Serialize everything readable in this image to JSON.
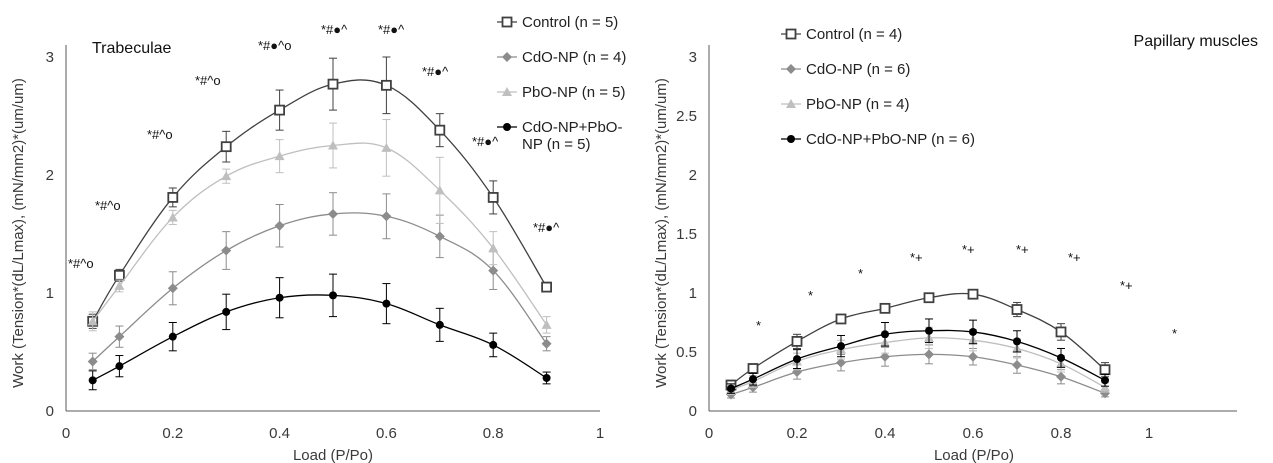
{
  "chart_data": [
    {
      "type": "line",
      "title": "Trabeculae",
      "xlabel": "Load (P/Po)",
      "ylabel": "Work (Tension*(dL/Lmax), (mN/mm2)*(um/um)",
      "xlim": [
        0,
        1
      ],
      "ylim": [
        0,
        3
      ],
      "xticks": [
        0,
        0.2,
        0.4,
        0.6,
        0.8,
        1
      ],
      "xtick_labels": [
        "0",
        "0.2",
        "0.4",
        "0.6",
        "0.8",
        "1"
      ],
      "yticks": [
        0,
        1,
        2,
        3
      ],
      "ytick_labels": [
        "0",
        "1",
        "2",
        "3"
      ],
      "grid": false,
      "legend_position": "top-right",
      "x": [
        0.05,
        0.1,
        0.2,
        0.3,
        0.4,
        0.5,
        0.6,
        0.7,
        0.8,
        0.9
      ],
      "series": [
        {
          "name": "Control (n = 5)",
          "color": "#404040",
          "marker": "open-square",
          "values": [
            0.76,
            1.15,
            1.81,
            2.24,
            2.55,
            2.77,
            2.76,
            2.38,
            1.81,
            1.05
          ],
          "errors": [
            0.06,
            0.05,
            0.08,
            0.13,
            0.17,
            0.22,
            0.24,
            0.14,
            0.14,
            0.04
          ]
        },
        {
          "name": "CdO-NP (n = 4)",
          "color": "#8c8c8c",
          "marker": "diamond",
          "values": [
            0.42,
            0.63,
            1.04,
            1.36,
            1.57,
            1.67,
            1.65,
            1.48,
            1.19,
            0.57
          ],
          "errors": [
            0.07,
            0.09,
            0.14,
            0.16,
            0.18,
            0.18,
            0.19,
            0.18,
            0.16,
            0.06
          ]
        },
        {
          "name": "PbO-NP (n = 5)",
          "color": "#bfbfbf",
          "marker": "triangle",
          "values": [
            0.76,
            1.06,
            1.64,
            1.99,
            2.16,
            2.25,
            2.23,
            1.87,
            1.38,
            0.73
          ],
          "errors": [
            0.08,
            0.05,
            0.06,
            0.06,
            0.14,
            0.19,
            0.24,
            0.28,
            0.14,
            0.07
          ]
        },
        {
          "name": "CdO-NP+PbO-NP (n = 5)",
          "legend_lines": [
            "CdO-NP+PbO-",
            "NP (n = 5)"
          ],
          "color": "#000000",
          "marker": "circle",
          "values": [
            0.26,
            0.38,
            0.63,
            0.84,
            0.96,
            0.98,
            0.91,
            0.73,
            0.56,
            0.28
          ],
          "errors": [
            0.08,
            0.09,
            0.12,
            0.15,
            0.17,
            0.18,
            0.17,
            0.14,
            0.1,
            0.05
          ]
        }
      ],
      "annotations": [
        "*#^o",
        "*#^o",
        "*#^o",
        "*#^o",
        "*#●^o",
        "*#●^",
        "*#●^",
        "*#●^",
        "*#●^",
        "*#●^",
        "*+#●^"
      ]
    },
    {
      "type": "line",
      "title": "Papillary muscles",
      "xlabel": "Load (P/Po)",
      "ylabel": "Work (Tension*(dL/Lmax), (mN/mm2)*(um/um)",
      "xlim": [
        0,
        1.2
      ],
      "ylim": [
        0,
        3
      ],
      "xticks": [
        0,
        0.2,
        0.4,
        0.6,
        0.8,
        1
      ],
      "xtick_labels": [
        "0",
        "0.2",
        "0.4",
        "0.6",
        "0.8",
        "1"
      ],
      "yticks": [
        0,
        0.5,
        1,
        1.5,
        2,
        2.5,
        3
      ],
      "ytick_labels": [
        "0",
        "0.5",
        "1",
        "1.5",
        "2",
        "2.5",
        "3"
      ],
      "grid": false,
      "legend_position": "top-left",
      "x": [
        0.05,
        0.1,
        0.2,
        0.3,
        0.4,
        0.5,
        0.6,
        0.7,
        0.8,
        0.9
      ],
      "series": [
        {
          "name": "Control (n = 4)",
          "color": "#404040",
          "marker": "open-square",
          "values": [
            0.22,
            0.36,
            0.59,
            0.78,
            0.87,
            0.96,
            0.99,
            0.86,
            0.67,
            0.35
          ],
          "errors": [
            0.04,
            0.04,
            0.06,
            0.03,
            0.03,
            0.03,
            0.02,
            0.06,
            0.07,
            0.06
          ]
        },
        {
          "name": "CdO-NP (n = 6)",
          "color": "#8c8c8c",
          "marker": "diamond",
          "values": [
            0.14,
            0.2,
            0.33,
            0.41,
            0.46,
            0.48,
            0.46,
            0.39,
            0.29,
            0.15
          ],
          "errors": [
            0.03,
            0.04,
            0.06,
            0.07,
            0.08,
            0.08,
            0.07,
            0.07,
            0.06,
            0.03
          ]
        },
        {
          "name": "PbO-NP (n = 4)",
          "color": "#bfbfbf",
          "marker": "triangle",
          "values": [
            0.18,
            0.25,
            0.42,
            0.52,
            0.58,
            0.62,
            0.6,
            0.53,
            0.4,
            0.2
          ],
          "errors": [
            0.04,
            0.05,
            0.07,
            0.08,
            0.09,
            0.09,
            0.09,
            0.08,
            0.07,
            0.04
          ]
        },
        {
          "name": "CdO-NP+PbO-NP (n = 6)",
          "color": "#000000",
          "marker": "circle",
          "values": [
            0.19,
            0.27,
            0.44,
            0.55,
            0.65,
            0.68,
            0.67,
            0.59,
            0.45,
            0.26
          ],
          "errors": [
            0.04,
            0.05,
            0.08,
            0.09,
            0.1,
            0.1,
            0.1,
            0.09,
            0.08,
            0.05
          ]
        }
      ],
      "annotations": [
        "*",
        "*",
        "*",
        "*+",
        "*+",
        "*+",
        "*+",
        "*+",
        "*"
      ]
    }
  ]
}
